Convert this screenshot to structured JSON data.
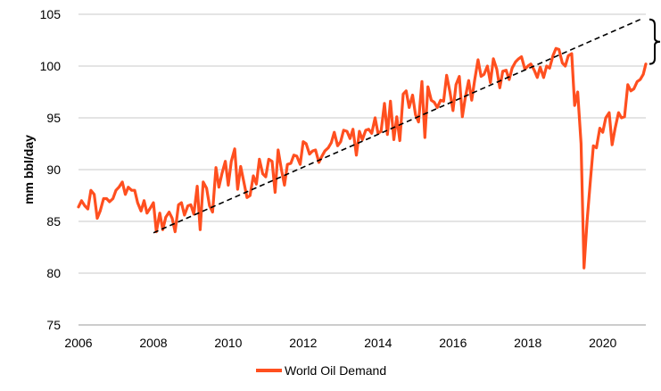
{
  "colors": {
    "series": "#ff4f1f",
    "grid": "#c8c8c8",
    "trend": "#000000",
    "bracket": "#000000"
  },
  "chart_data": {
    "type": "line",
    "title": "",
    "xlabel": "",
    "ylabel": "mm bbl/day",
    "xlim": [
      2006,
      2021.15
    ],
    "ylim": [
      75,
      105
    ],
    "xticks": [
      2006,
      2008,
      2010,
      2012,
      2014,
      2016,
      2018,
      2020
    ],
    "xtick_labels": [
      "2006",
      "2008",
      "2010",
      "2012",
      "2014",
      "2016",
      "2018",
      "2020"
    ],
    "yticks": [
      75,
      80,
      85,
      90,
      95,
      100,
      105
    ],
    "ytick_labels": [
      "75",
      "80",
      "85",
      "90",
      "95",
      "100",
      "105"
    ],
    "grid": "horizontal",
    "legend": "bottom-center",
    "series": [
      {
        "name": "World Oil Demand",
        "style": "solid",
        "points": [
          [
            2006.0,
            86.4
          ],
          [
            2006.08,
            87.0
          ],
          [
            2006.17,
            86.5
          ],
          [
            2006.25,
            86.2
          ],
          [
            2006.33,
            88.0
          ],
          [
            2006.42,
            87.6
          ],
          [
            2006.5,
            85.3
          ],
          [
            2006.58,
            86.0
          ],
          [
            2006.67,
            87.2
          ],
          [
            2006.75,
            87.2
          ],
          [
            2006.83,
            86.9
          ],
          [
            2006.92,
            87.2
          ],
          [
            2007.0,
            88.0
          ],
          [
            2007.08,
            88.3
          ],
          [
            2007.17,
            88.8
          ],
          [
            2007.25,
            87.6
          ],
          [
            2007.33,
            88.3
          ],
          [
            2007.42,
            88.0
          ],
          [
            2007.5,
            88.0
          ],
          [
            2007.58,
            86.8
          ],
          [
            2007.67,
            86.0
          ],
          [
            2007.75,
            87.0
          ],
          [
            2007.83,
            85.8
          ],
          [
            2007.92,
            86.3
          ],
          [
            2008.0,
            86.8
          ],
          [
            2008.08,
            84.0
          ],
          [
            2008.17,
            85.8
          ],
          [
            2008.25,
            84.2
          ],
          [
            2008.33,
            85.4
          ],
          [
            2008.42,
            85.9
          ],
          [
            2008.5,
            85.3
          ],
          [
            2008.58,
            84.0
          ],
          [
            2008.67,
            86.6
          ],
          [
            2008.75,
            86.8
          ],
          [
            2008.83,
            85.6
          ],
          [
            2008.92,
            86.5
          ],
          [
            2009.0,
            86.6
          ],
          [
            2009.08,
            85.7
          ],
          [
            2009.17,
            88.4
          ],
          [
            2009.25,
            84.2
          ],
          [
            2009.33,
            88.8
          ],
          [
            2009.42,
            88.2
          ],
          [
            2009.5,
            86.5
          ],
          [
            2009.58,
            85.9
          ],
          [
            2009.67,
            90.2
          ],
          [
            2009.75,
            88.3
          ],
          [
            2009.83,
            89.6
          ],
          [
            2009.92,
            90.8
          ],
          [
            2010.0,
            88.5
          ],
          [
            2010.08,
            90.8
          ],
          [
            2010.17,
            92.0
          ],
          [
            2010.25,
            88.1
          ],
          [
            2010.33,
            90.3
          ],
          [
            2010.42,
            88.7
          ],
          [
            2010.5,
            87.3
          ],
          [
            2010.58,
            87.5
          ],
          [
            2010.67,
            89.4
          ],
          [
            2010.75,
            88.6
          ],
          [
            2010.83,
            91.0
          ],
          [
            2010.92,
            89.6
          ],
          [
            2011.0,
            89.3
          ],
          [
            2011.08,
            91.0
          ],
          [
            2011.17,
            90.8
          ],
          [
            2011.25,
            87.8
          ],
          [
            2011.33,
            91.9
          ],
          [
            2011.42,
            90.0
          ],
          [
            2011.5,
            88.5
          ],
          [
            2011.58,
            90.5
          ],
          [
            2011.67,
            90.6
          ],
          [
            2011.75,
            91.4
          ],
          [
            2011.83,
            91.3
          ],
          [
            2011.92,
            90.5
          ],
          [
            2012.0,
            92.7
          ],
          [
            2012.08,
            92.5
          ],
          [
            2012.17,
            91.5
          ],
          [
            2012.25,
            91.8
          ],
          [
            2012.33,
            91.9
          ],
          [
            2012.42,
            90.7
          ],
          [
            2012.5,
            91.3
          ],
          [
            2012.58,
            91.8
          ],
          [
            2012.67,
            92.1
          ],
          [
            2012.75,
            92.6
          ],
          [
            2012.83,
            93.6
          ],
          [
            2012.92,
            92.3
          ],
          [
            2013.0,
            92.7
          ],
          [
            2013.08,
            93.8
          ],
          [
            2013.17,
            93.7
          ],
          [
            2013.25,
            93.0
          ],
          [
            2013.33,
            93.9
          ],
          [
            2013.42,
            91.4
          ],
          [
            2013.5,
            93.7
          ],
          [
            2013.58,
            92.9
          ],
          [
            2013.67,
            93.8
          ],
          [
            2013.75,
            93.9
          ],
          [
            2013.83,
            93.5
          ],
          [
            2013.92,
            95.0
          ],
          [
            2014.0,
            93.5
          ],
          [
            2014.08,
            93.7
          ],
          [
            2014.17,
            96.4
          ],
          [
            2014.25,
            93.4
          ],
          [
            2014.33,
            96.6
          ],
          [
            2014.42,
            92.9
          ],
          [
            2014.5,
            95.1
          ],
          [
            2014.58,
            92.8
          ],
          [
            2014.67,
            97.3
          ],
          [
            2014.75,
            97.6
          ],
          [
            2014.83,
            96.0
          ],
          [
            2014.92,
            97.2
          ],
          [
            2015.0,
            95.3
          ],
          [
            2015.08,
            94.6
          ],
          [
            2015.17,
            98.5
          ],
          [
            2015.25,
            93.1
          ],
          [
            2015.33,
            98.0
          ],
          [
            2015.42,
            96.7
          ],
          [
            2015.5,
            96.5
          ],
          [
            2015.58,
            96.0
          ],
          [
            2015.67,
            96.7
          ],
          [
            2015.75,
            96.6
          ],
          [
            2015.83,
            99.1
          ],
          [
            2015.92,
            97.5
          ],
          [
            2016.0,
            95.7
          ],
          [
            2016.08,
            98.2
          ],
          [
            2016.17,
            99.0
          ],
          [
            2016.25,
            95.1
          ],
          [
            2016.33,
            97.0
          ],
          [
            2016.42,
            98.6
          ],
          [
            2016.5,
            96.7
          ],
          [
            2016.58,
            98.7
          ],
          [
            2016.67,
            100.6
          ],
          [
            2016.75,
            99.0
          ],
          [
            2016.83,
            99.2
          ],
          [
            2016.92,
            100.0
          ],
          [
            2017.0,
            98.4
          ],
          [
            2017.08,
            100.7
          ],
          [
            2017.17,
            99.7
          ],
          [
            2017.25,
            97.9
          ],
          [
            2017.33,
            99.5
          ],
          [
            2017.42,
            99.6
          ],
          [
            2017.5,
            98.7
          ],
          [
            2017.58,
            99.8
          ],
          [
            2017.67,
            100.4
          ],
          [
            2017.75,
            100.7
          ],
          [
            2017.83,
            100.9
          ],
          [
            2017.92,
            99.7
          ],
          [
            2018.0,
            100.0
          ],
          [
            2018.08,
            100.2
          ],
          [
            2018.17,
            99.6
          ],
          [
            2018.25,
            98.9
          ],
          [
            2018.33,
            99.9
          ],
          [
            2018.42,
            98.9
          ],
          [
            2018.5,
            100.0
          ],
          [
            2018.58,
            99.8
          ],
          [
            2018.67,
            101.0
          ],
          [
            2018.75,
            101.7
          ],
          [
            2018.83,
            101.6
          ],
          [
            2018.92,
            100.3
          ],
          [
            2019.0,
            100.0
          ],
          [
            2019.08,
            101.0
          ],
          [
            2019.17,
            101.2
          ],
          [
            2019.25,
            96.2
          ],
          [
            2019.33,
            97.5
          ],
          [
            2019.42,
            92.5
          ],
          [
            2019.5,
            80.5
          ],
          [
            2019.58,
            85.0
          ],
          [
            2019.67,
            89.0
          ],
          [
            2019.75,
            92.3
          ],
          [
            2019.83,
            92.1
          ],
          [
            2019.92,
            94.0
          ],
          [
            2020.0,
            93.6
          ],
          [
            2020.08,
            95.0
          ],
          [
            2020.17,
            95.5
          ],
          [
            2020.25,
            92.4
          ],
          [
            2020.33,
            94.0
          ],
          [
            2020.42,
            95.5
          ],
          [
            2020.5,
            95.0
          ],
          [
            2020.58,
            95.1
          ],
          [
            2020.67,
            98.2
          ],
          [
            2020.75,
            97.6
          ],
          [
            2020.83,
            97.8
          ],
          [
            2020.92,
            98.5
          ],
          [
            2021.0,
            98.7
          ],
          [
            2021.08,
            99.2
          ],
          [
            2021.15,
            100.2
          ]
        ]
      },
      {
        "name": "",
        "style": "dashed",
        "points": [
          [
            2008.0,
            83.9
          ],
          [
            2021.0,
            104.5
          ]
        ]
      }
    ],
    "annotations": [
      {
        "type": "bracket",
        "x": 2021.15,
        "y_from": 100.2,
        "y_to": 104.5
      }
    ]
  }
}
